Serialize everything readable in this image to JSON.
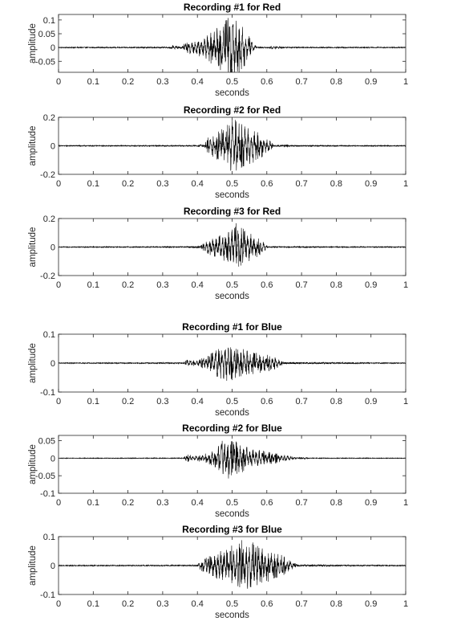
{
  "chart_data": [
    {
      "type": "line",
      "title": "Recording #1 for Red",
      "xlabel": "seconds",
      "ylabel": "amplitude",
      "xlim": [
        0,
        1
      ],
      "ylim": [
        -0.09,
        0.12
      ],
      "xticks": [
        "0",
        "0.1",
        "0.2",
        "0.3",
        "0.4",
        "0.5",
        "0.6",
        "0.7",
        "0.8",
        "0.9",
        "1"
      ],
      "yticks": [
        {
          "v": 0.1,
          "label": "0.1"
        },
        {
          "v": 0.05,
          "label": "0.05"
        },
        {
          "v": 0,
          "label": "0"
        },
        {
          "v": -0.05,
          "label": "-0.05"
        }
      ],
      "grid": false,
      "series": [
        {
          "color": "#000000",
          "noise": 0.0015,
          "envelope": [
            [
              0.0,
              0.0015
            ],
            [
              0.32,
              0.002
            ],
            [
              0.33,
              0.01
            ],
            [
              0.35,
              0.002
            ],
            [
              0.36,
              0.015
            ],
            [
              0.38,
              0.025
            ],
            [
              0.42,
              0.04
            ],
            [
              0.45,
              0.07
            ],
            [
              0.48,
              0.1
            ],
            [
              0.5,
              0.12
            ],
            [
              0.52,
              0.1
            ],
            [
              0.54,
              0.06
            ],
            [
              0.56,
              0.02
            ],
            [
              0.57,
              0.003
            ],
            [
              0.6,
              0.002
            ],
            [
              0.62,
              0.006
            ],
            [
              0.64,
              0.004
            ],
            [
              0.65,
              0.002
            ],
            [
              1.0,
              0.0015
            ]
          ]
        }
      ]
    },
    {
      "type": "line",
      "title": "Recording #2 for Red",
      "xlabel": "seconds",
      "ylabel": "amplitude",
      "xlim": [
        0,
        1
      ],
      "ylim": [
        -0.2,
        0.2
      ],
      "xticks": [
        "0",
        "0.1",
        "0.2",
        "0.3",
        "0.4",
        "0.5",
        "0.6",
        "0.7",
        "0.8",
        "0.9",
        "1"
      ],
      "yticks": [
        {
          "v": 0.2,
          "label": "0.2"
        },
        {
          "v": 0,
          "label": "0"
        },
        {
          "v": -0.2,
          "label": "-0.2"
        }
      ],
      "grid": false,
      "series": [
        {
          "color": "#000000",
          "noise": 0.003,
          "envelope": [
            [
              0.0,
              0.003
            ],
            [
              0.4,
              0.004
            ],
            [
              0.41,
              0.012
            ],
            [
              0.42,
              0.005
            ],
            [
              0.43,
              0.06
            ],
            [
              0.45,
              0.09
            ],
            [
              0.48,
              0.13
            ],
            [
              0.5,
              0.2
            ],
            [
              0.53,
              0.17
            ],
            [
              0.56,
              0.12
            ],
            [
              0.59,
              0.08
            ],
            [
              0.61,
              0.04
            ],
            [
              0.62,
              0.005
            ],
            [
              0.66,
              0.008
            ],
            [
              0.67,
              0.004
            ],
            [
              1.0,
              0.003
            ]
          ]
        }
      ]
    },
    {
      "type": "line",
      "title": "Recording #3 for Red",
      "xlabel": "seconds",
      "ylabel": "amplitude",
      "xlim": [
        0,
        1
      ],
      "ylim": [
        -0.2,
        0.2
      ],
      "xticks": [
        "0",
        "0.1",
        "0.2",
        "0.3",
        "0.4",
        "0.5",
        "0.6",
        "0.7",
        "0.8",
        "0.9",
        "1"
      ],
      "yticks": [
        {
          "v": 0.2,
          "label": "0.2"
        },
        {
          "v": 0,
          "label": "0"
        },
        {
          "v": -0.2,
          "label": "-0.2"
        }
      ],
      "grid": false,
      "series": [
        {
          "color": "#000000",
          "noise": 0.003,
          "envelope": [
            [
              0.0,
              0.003
            ],
            [
              0.38,
              0.004
            ],
            [
              0.41,
              0.01
            ],
            [
              0.43,
              0.05
            ],
            [
              0.46,
              0.08
            ],
            [
              0.49,
              0.12
            ],
            [
              0.51,
              0.18
            ],
            [
              0.53,
              0.14
            ],
            [
              0.56,
              0.09
            ],
            [
              0.59,
              0.04
            ],
            [
              0.6,
              0.01
            ],
            [
              0.61,
              0.004
            ],
            [
              1.0,
              0.003
            ]
          ]
        }
      ]
    },
    {
      "type": "line",
      "title": "Recording #1 for Blue",
      "xlabel": "seconds",
      "ylabel": "amplitude",
      "xlim": [
        0,
        1
      ],
      "ylim": [
        -0.1,
        0.1
      ],
      "xticks": [
        "0",
        "0.1",
        "0.2",
        "0.3",
        "0.4",
        "0.5",
        "0.6",
        "0.7",
        "0.8",
        "0.9",
        "1"
      ],
      "yticks": [
        {
          "v": 0.1,
          "label": "0.1"
        },
        {
          "v": 0,
          "label": "0"
        },
        {
          "v": -0.1,
          "label": "-0.1"
        }
      ],
      "grid": false,
      "series": [
        {
          "color": "#000000",
          "noise": 0.0015,
          "envelope": [
            [
              0.0,
              0.0015
            ],
            [
              0.36,
              0.002
            ],
            [
              0.37,
              0.015
            ],
            [
              0.38,
              0.008
            ],
            [
              0.4,
              0.012
            ],
            [
              0.43,
              0.025
            ],
            [
              0.45,
              0.045
            ],
            [
              0.47,
              0.075
            ],
            [
              0.5,
              0.06
            ],
            [
              0.53,
              0.05
            ],
            [
              0.56,
              0.04
            ],
            [
              0.6,
              0.03
            ],
            [
              0.63,
              0.02
            ],
            [
              0.65,
              0.003
            ],
            [
              1.0,
              0.0015
            ]
          ]
        }
      ]
    },
    {
      "type": "line",
      "title": "Recording #2 for Blue",
      "xlabel": "seconds",
      "ylabel": "amplitude",
      "xlim": [
        0,
        1
      ],
      "ylim": [
        -0.1,
        0.065
      ],
      "xticks": [
        "0",
        "0.1",
        "0.2",
        "0.3",
        "0.4",
        "0.5",
        "0.6",
        "0.7",
        "0.8",
        "0.9",
        "1"
      ],
      "yticks": [
        {
          "v": 0.05,
          "label": "0.05"
        },
        {
          "v": 0,
          "label": "0"
        },
        {
          "v": -0.05,
          "label": "-0.05"
        },
        {
          "v": -0.1,
          "label": "-0.1"
        }
      ],
      "grid": false,
      "series": [
        {
          "color": "#000000",
          "noise": 0.0008,
          "envelope": [
            [
              0.0,
              0.0008
            ],
            [
              0.36,
              0.001
            ],
            [
              0.37,
              0.012
            ],
            [
              0.39,
              0.008
            ],
            [
              0.42,
              0.012
            ],
            [
              0.45,
              0.025
            ],
            [
              0.47,
              0.05
            ],
            [
              0.49,
              0.06
            ],
            [
              0.52,
              0.045
            ],
            [
              0.55,
              0.03
            ],
            [
              0.6,
              0.02
            ],
            [
              0.65,
              0.01
            ],
            [
              0.68,
              0.003
            ],
            [
              0.7,
              0.002
            ],
            [
              0.71,
              0.004
            ],
            [
              0.72,
              0.001
            ],
            [
              1.0,
              0.0008
            ]
          ]
        }
      ]
    },
    {
      "type": "line",
      "title": "Recording #3 for Blue",
      "xlabel": "seconds",
      "ylabel": "amplitude",
      "xlim": [
        0,
        1
      ],
      "ylim": [
        -0.1,
        0.1
      ],
      "xticks": [
        "0",
        "0.1",
        "0.2",
        "0.3",
        "0.4",
        "0.5",
        "0.6",
        "0.7",
        "0.8",
        "0.9",
        "1"
      ],
      "yticks": [
        {
          "v": 0.1,
          "label": "0.1"
        },
        {
          "v": 0,
          "label": "0"
        },
        {
          "v": -0.1,
          "label": "-0.1"
        }
      ],
      "grid": false,
      "series": [
        {
          "color": "#000000",
          "noise": 0.0015,
          "envelope": [
            [
              0.0,
              0.0015
            ],
            [
              0.4,
              0.002
            ],
            [
              0.41,
              0.02
            ],
            [
              0.43,
              0.03
            ],
            [
              0.46,
              0.05
            ],
            [
              0.5,
              0.07
            ],
            [
              0.53,
              0.09
            ],
            [
              0.56,
              0.08
            ],
            [
              0.6,
              0.06
            ],
            [
              0.64,
              0.04
            ],
            [
              0.67,
              0.015
            ],
            [
              0.69,
              0.003
            ],
            [
              1.0,
              0.0015
            ]
          ]
        }
      ]
    }
  ]
}
